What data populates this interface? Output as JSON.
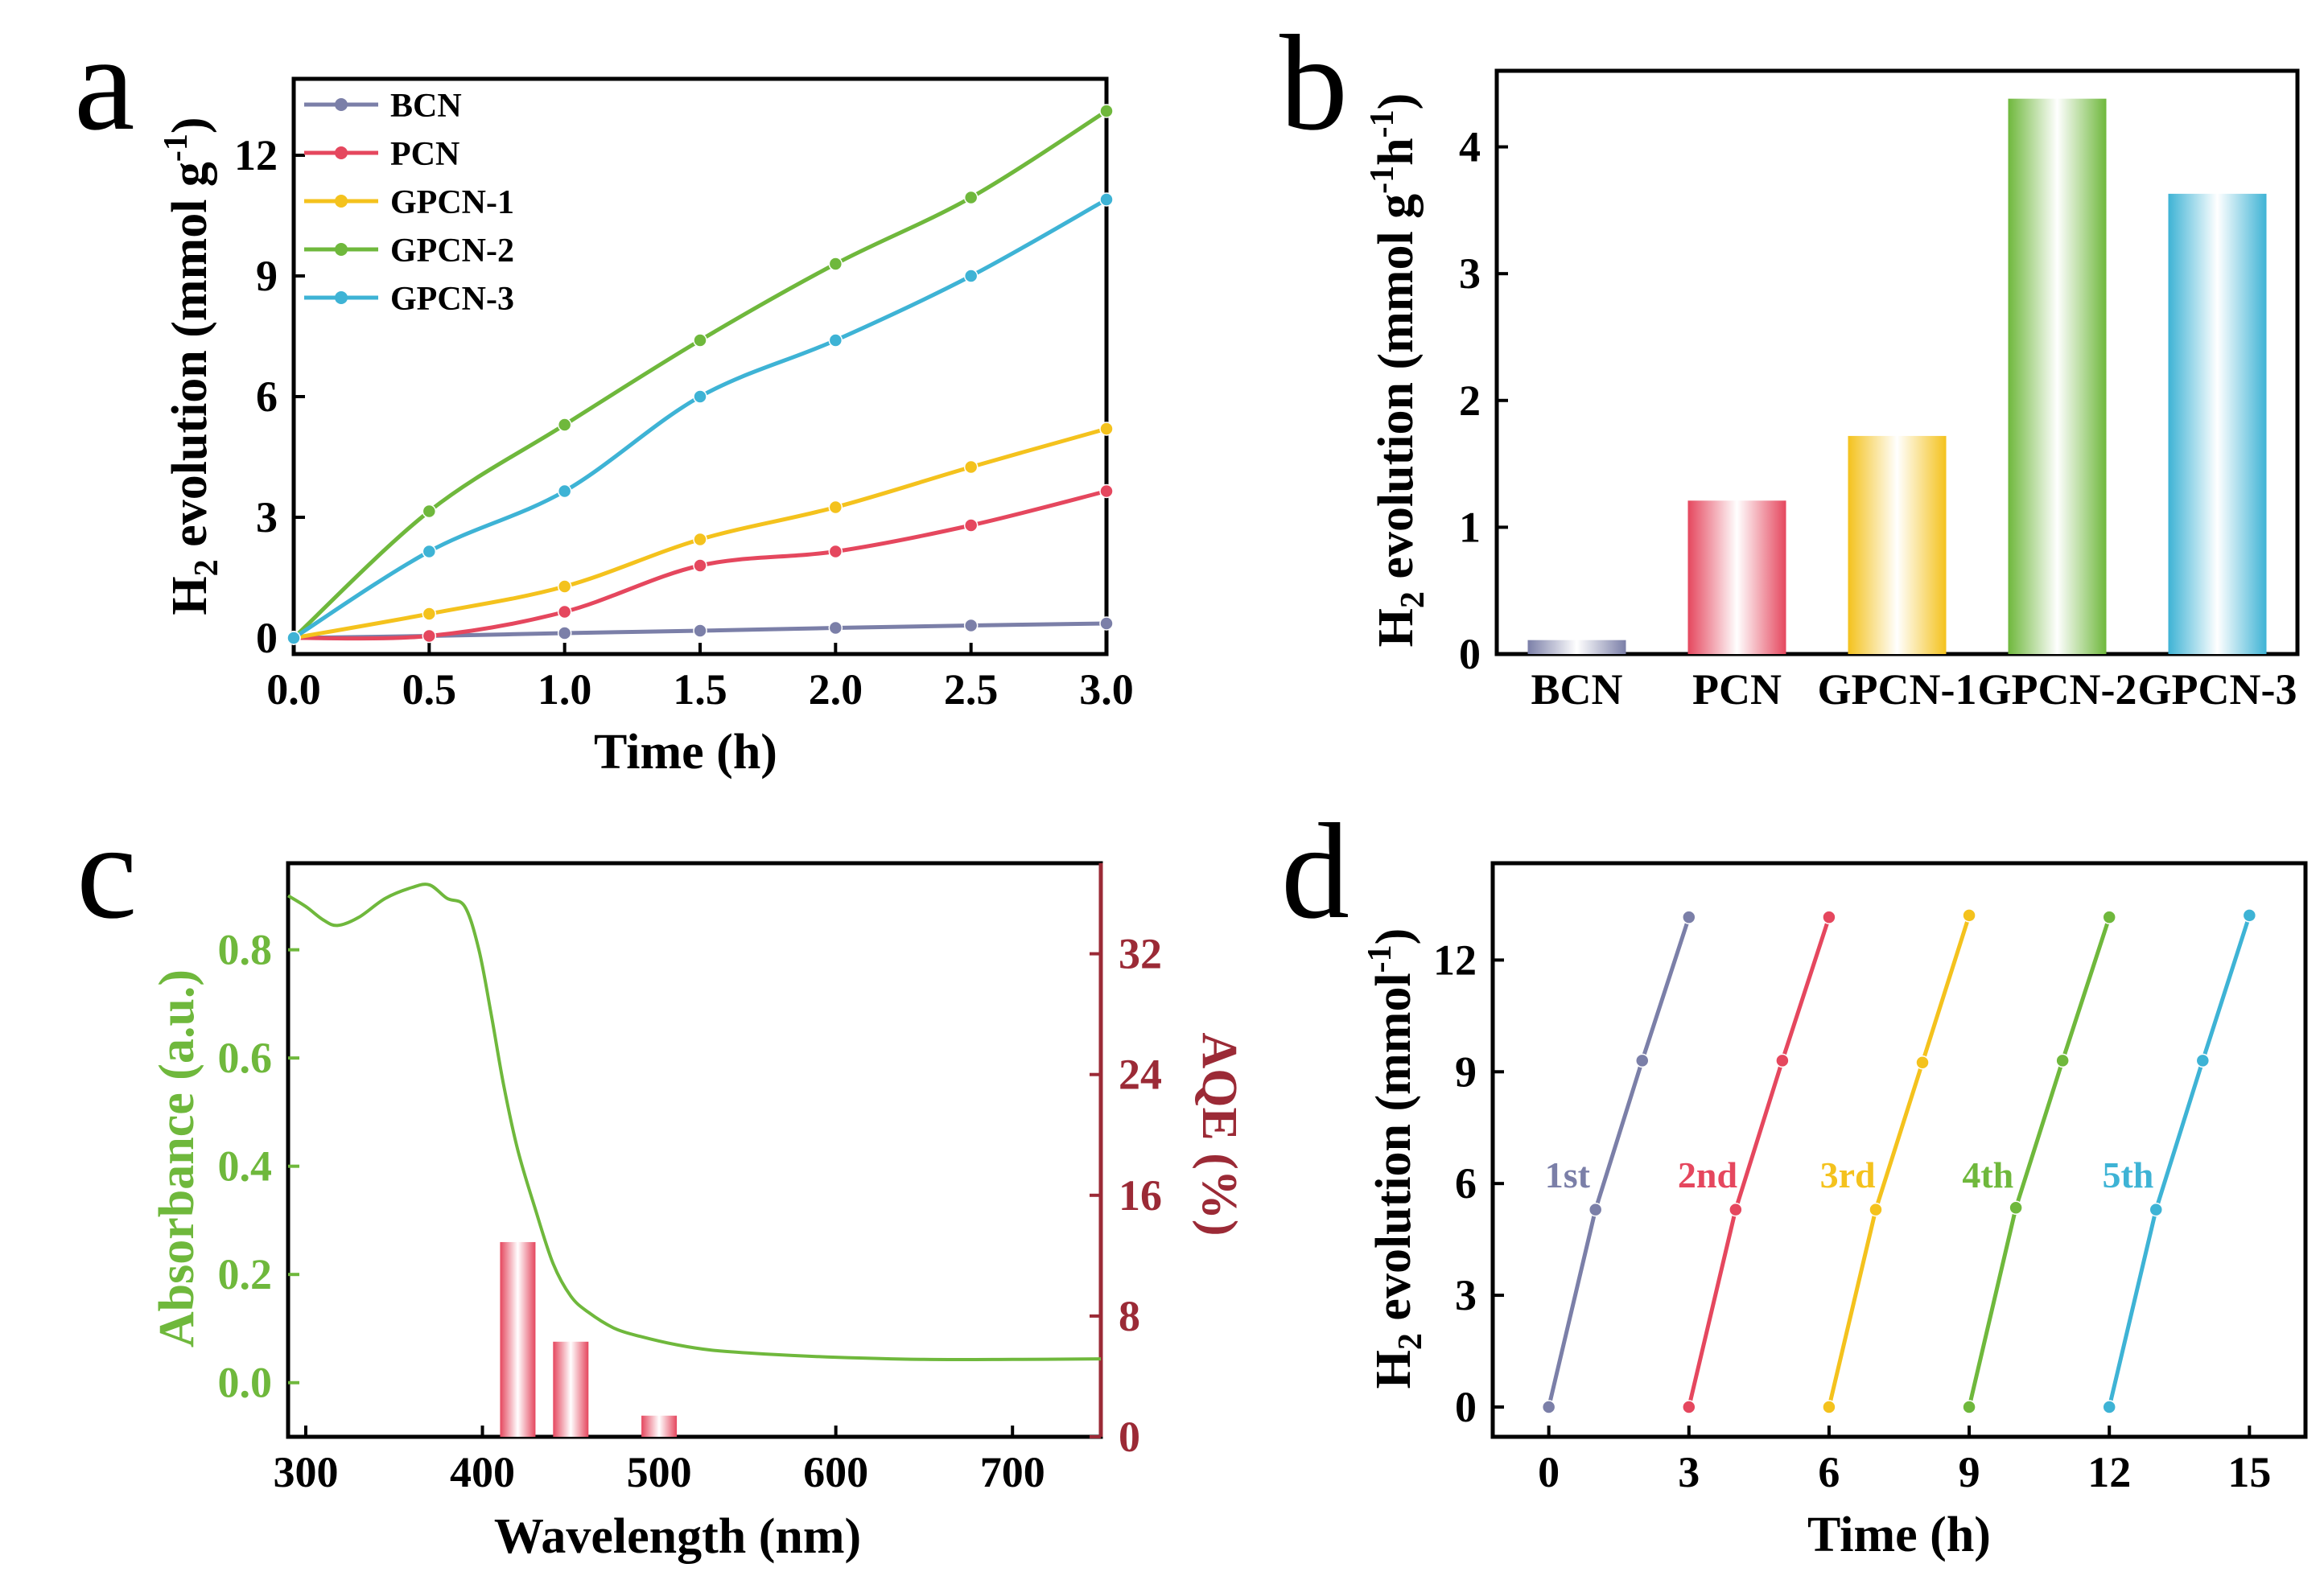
{
  "chart_data": [
    {
      "panel": "a",
      "type": "line",
      "xlabel": "Time (h)",
      "ylabel_main": "H",
      "ylabel_sub": "2",
      "ylabel_rest": " evolution (mmol g",
      "ylabel_sup": "-1",
      "ylabel_end": ")",
      "xlim": [
        0,
        3
      ],
      "ylim": [
        -0.4,
        13.9
      ],
      "xticks": [
        "0.0",
        "0.5",
        "1.0",
        "1.5",
        "2.0",
        "2.5",
        "3.0"
      ],
      "xtick_values": [
        0,
        0.5,
        1,
        1.5,
        2,
        2.5,
        3
      ],
      "yticks": [
        "0",
        "3",
        "6",
        "9",
        "12"
      ],
      "ytick_values": [
        0,
        3,
        6,
        9,
        12
      ],
      "legend_position": "top-left",
      "x": [
        0,
        0.5,
        1.0,
        1.5,
        2.0,
        2.5,
        3.0
      ],
      "series": [
        {
          "name": "BCN",
          "color": "#7b7fa8",
          "values": [
            0,
            0.05,
            0.12,
            0.18,
            0.25,
            0.31,
            0.36
          ]
        },
        {
          "name": "PCN",
          "color": "#e5475e",
          "values": [
            0,
            0.05,
            0.65,
            1.8,
            2.15,
            2.8,
            3.65
          ]
        },
        {
          "name": "GPCN-1",
          "color": "#f4c21d",
          "values": [
            0,
            0.6,
            1.28,
            2.45,
            3.25,
            4.25,
            5.2
          ]
        },
        {
          "name": "GPCN-2",
          "color": "#6fb83c",
          "values": [
            0,
            3.15,
            5.3,
            7.4,
            9.3,
            10.95,
            13.1
          ]
        },
        {
          "name": "GPCN-3",
          "color": "#3eb3d5",
          "values": [
            0,
            2.15,
            3.65,
            6.0,
            7.4,
            9.0,
            10.9
          ]
        }
      ]
    },
    {
      "panel": "b",
      "type": "bar",
      "ylabel_main": "H",
      "ylabel_sub": "2",
      "ylabel_rest": " evolution (mmol g",
      "ylabel_sup": "-1",
      "ylabel_mid": "h",
      "ylabel_sup2": "-1",
      "ylabel_end": ")",
      "ylim": [
        0,
        4.6
      ],
      "yticks": [
        "0",
        "1",
        "2",
        "3",
        "4"
      ],
      "ytick_values": [
        0,
        1,
        2,
        3,
        4
      ],
      "categories": [
        "BCN",
        "PCN",
        "GPCN-1",
        "GPCN-2",
        "GPCN-3"
      ],
      "values": [
        0.11,
        1.21,
        1.72,
        4.38,
        3.63
      ],
      "colors": [
        "#7b7fa8",
        "#e5475e",
        "#f4c21d",
        "#6fb83c",
        "#3eb3d5"
      ]
    },
    {
      "panel": "c",
      "type": "line",
      "xlabel": "Wavelength (nm)",
      "ylabel_left": "Absorbance (a.u.)",
      "ylabel_right": "AQE (%)",
      "xlim": [
        290,
        750
      ],
      "ylim_left": [
        -0.1,
        0.96
      ],
      "ylim_right": [
        0,
        38
      ],
      "xticks": [
        "300",
        "400",
        "500",
        "600",
        "700"
      ],
      "xtick_values": [
        300,
        400,
        500,
        600,
        700
      ],
      "yticks_left": [
        "0.0",
        "0.2",
        "0.4",
        "0.6",
        "0.8"
      ],
      "ytick_values_left": [
        0,
        0.2,
        0.4,
        0.6,
        0.8
      ],
      "yticks_right": [
        "0",
        "8",
        "16",
        "24",
        "32"
      ],
      "ytick_values_right": [
        0,
        8,
        16,
        24,
        32
      ],
      "left_color": "#6fb83c",
      "right_color": "#9b2a36",
      "absorbance": {
        "x": [
          290,
          300,
          310,
          318,
          330,
          345,
          360,
          370,
          380,
          390,
          398,
          405,
          412,
          420,
          430,
          440,
          450,
          460,
          475,
          490,
          510,
          530,
          560,
          600,
          650,
          700,
          750
        ],
        "y": [
          0.9,
          0.88,
          0.855,
          0.845,
          0.86,
          0.895,
          0.915,
          0.92,
          0.895,
          0.88,
          0.8,
          0.68,
          0.55,
          0.43,
          0.32,
          0.22,
          0.16,
          0.13,
          0.1,
          0.085,
          0.07,
          0.06,
          0.053,
          0.047,
          0.043,
          0.043,
          0.044
        ]
      },
      "aqe_bars": {
        "wavelengths": [
          420,
          450,
          500
        ],
        "values": [
          12.9,
          6.3,
          1.4
        ]
      }
    },
    {
      "panel": "d",
      "type": "line",
      "xlabel": "Time (h)",
      "ylabel_main": "H",
      "ylabel_sub": "2",
      "ylabel_rest": " evolution (mmol",
      "ylabel_sup": "-1",
      "ylabel_end": ")",
      "xlim": [
        -1.2,
        16.2
      ],
      "ylim": [
        -0.8,
        14.6
      ],
      "xticks": [
        "0",
        "3",
        "6",
        "9",
        "12",
        "15"
      ],
      "xtick_values": [
        0,
        3,
        6,
        9,
        12,
        15
      ],
      "yticks": [
        "0",
        "3",
        "6",
        "9",
        "12"
      ],
      "ytick_values": [
        0,
        3,
        6,
        9,
        12
      ],
      "series": [
        {
          "name": "1st",
          "color": "#7b7fa8",
          "x": [
            0,
            1,
            2,
            3
          ],
          "values": [
            0,
            5.3,
            9.3,
            13.15
          ]
        },
        {
          "name": "2nd",
          "color": "#e5475e",
          "x": [
            3,
            4,
            5,
            6
          ],
          "values": [
            0,
            5.3,
            9.3,
            13.15
          ]
        },
        {
          "name": "3rd",
          "color": "#f4c21d",
          "x": [
            6,
            7,
            8,
            9
          ],
          "values": [
            0,
            5.3,
            9.25,
            13.2
          ]
        },
        {
          "name": "4th",
          "color": "#6fb83c",
          "x": [
            9,
            10,
            11,
            12
          ],
          "values": [
            0,
            5.35,
            9.3,
            13.15
          ]
        },
        {
          "name": "5th",
          "color": "#3eb3d5",
          "x": [
            12,
            13,
            14,
            15
          ],
          "values": [
            0,
            5.3,
            9.3,
            13.2
          ]
        }
      ]
    }
  ],
  "panel_labels": {
    "a": "a",
    "b": "b",
    "c": "c",
    "d": "d"
  }
}
